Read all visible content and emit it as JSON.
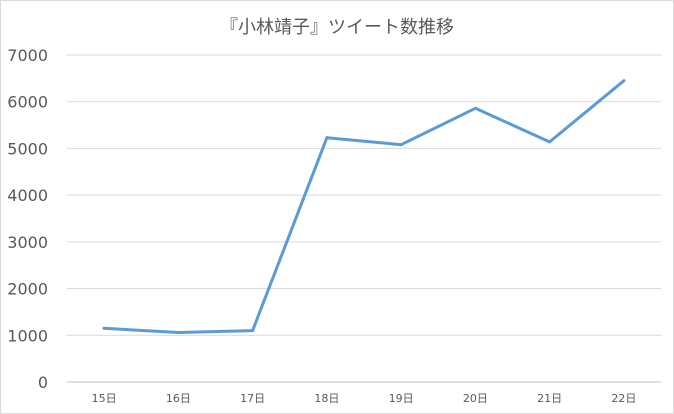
{
  "chart_data": {
    "type": "line",
    "title": "『小林靖子』ツイート数推移",
    "xlabel": "",
    "ylabel": "",
    "categories": [
      "15日",
      "16日",
      "17日",
      "18日",
      "19日",
      "20日",
      "21日",
      "22日"
    ],
    "series": [
      {
        "values": [
          1150,
          1060,
          1100,
          5230,
          5080,
          5860,
          5140,
          6450
        ]
      }
    ],
    "ylim": [
      0,
      7000
    ],
    "yticks": [
      0,
      1000,
      2000,
      3000,
      4000,
      5000,
      6000,
      7000
    ],
    "grid": true,
    "legend": "none",
    "colors": {
      "line": "#5b9bd5",
      "grid": "#d9d9d9",
      "axis": "#bfbfbf",
      "text": "#595959"
    }
  }
}
